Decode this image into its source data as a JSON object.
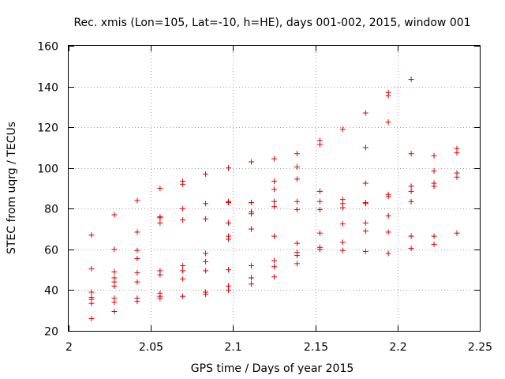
{
  "chart_data": {
    "type": "scatter",
    "title": "Rec. xmis (Lon=105, Lat=-10, h=HE), days 001-002, 2015, window 001",
    "xlabel": "GPS time / Days of year 2015",
    "ylabel": "STEC from uqrg / TECUs",
    "xlim": [
      2,
      2.25
    ],
    "ylim": [
      20,
      160
    ],
    "xticks": [
      2,
      2.05,
      2.1,
      2.15,
      2.2,
      2.25
    ],
    "xtick_labels": [
      "2",
      "2.05",
      "2.1",
      "2.15",
      "2.2",
      "2.25"
    ],
    "yticks": [
      20,
      40,
      60,
      80,
      100,
      120,
      140,
      160
    ],
    "ytick_labels": [
      "20",
      "40",
      "60",
      "80",
      "100",
      "120",
      "140",
      "160"
    ],
    "grid": true,
    "marker": "plus",
    "color": "#e00000",
    "points": [
      [
        2.0139,
        67
      ],
      [
        2.0139,
        50.5
      ],
      [
        2.0139,
        39
      ],
      [
        2.0139,
        36.5
      ],
      [
        2.0139,
        35.5
      ],
      [
        2.0139,
        33.5
      ],
      [
        2.0139,
        26
      ],
      [
        2.0278,
        77
      ],
      [
        2.0278,
        60
      ],
      [
        2.0278,
        49
      ],
      [
        2.0278,
        46
      ],
      [
        2.0278,
        44
      ],
      [
        2.0278,
        42
      ],
      [
        2.0278,
        36
      ],
      [
        2.0278,
        34
      ],
      [
        2.0278,
        29.5
      ],
      [
        2.0417,
        84
      ],
      [
        2.0417,
        68.5
      ],
      [
        2.0417,
        59.5
      ],
      [
        2.0417,
        55.5
      ],
      [
        2.0417,
        48.5
      ],
      [
        2.0417,
        44
      ],
      [
        2.0417,
        36
      ],
      [
        2.0417,
        34.5
      ],
      [
        2.0556,
        90
      ],
      [
        2.0556,
        76
      ],
      [
        2.0556,
        75.5
      ],
      [
        2.0556,
        73
      ],
      [
        2.0556,
        49.5
      ],
      [
        2.0556,
        47.5
      ],
      [
        2.0556,
        38.5
      ],
      [
        2.0556,
        37
      ],
      [
        2.0556,
        36
      ],
      [
        2.0694,
        93.5
      ],
      [
        2.0694,
        92
      ],
      [
        2.0694,
        80
      ],
      [
        2.0694,
        74.5
      ],
      [
        2.0694,
        52
      ],
      [
        2.0694,
        49.5
      ],
      [
        2.0694,
        45.5
      ],
      [
        2.0694,
        37
      ],
      [
        2.0833,
        97
      ],
      [
        2.0833,
        82.5
      ],
      [
        2.0833,
        75
      ],
      [
        2.0833,
        58
      ],
      [
        2.0833,
        54
      ],
      [
        2.0833,
        49.5
      ],
      [
        2.0833,
        39
      ],
      [
        2.0833,
        38
      ],
      [
        2.0972,
        100
      ],
      [
        2.0972,
        83.5
      ],
      [
        2.0972,
        83
      ],
      [
        2.0972,
        73
      ],
      [
        2.0972,
        66.5
      ],
      [
        2.0972,
        65
      ],
      [
        2.0972,
        50
      ],
      [
        2.0972,
        42
      ],
      [
        2.0972,
        40
      ],
      [
        2.1111,
        103
      ],
      [
        2.1111,
        83
      ],
      [
        2.1111,
        78.5
      ],
      [
        2.1111,
        77.5
      ],
      [
        2.1111,
        70
      ],
      [
        2.1111,
        52
      ],
      [
        2.1111,
        46
      ],
      [
        2.1111,
        43
      ],
      [
        2.125,
        104.5
      ],
      [
        2.125,
        93.5
      ],
      [
        2.125,
        89.5
      ],
      [
        2.125,
        83.5
      ],
      [
        2.125,
        81
      ],
      [
        2.125,
        66.5
      ],
      [
        2.125,
        54.5
      ],
      [
        2.125,
        51.5
      ],
      [
        2.125,
        46.5
      ],
      [
        2.1389,
        107
      ],
      [
        2.1389,
        100.5
      ],
      [
        2.1389,
        94.5
      ],
      [
        2.1389,
        83.5
      ],
      [
        2.1389,
        79.5
      ],
      [
        2.1389,
        63
      ],
      [
        2.1389,
        58.5
      ],
      [
        2.1389,
        57
      ],
      [
        2.1389,
        53
      ],
      [
        2.1528,
        113.5
      ],
      [
        2.1528,
        111.5
      ],
      [
        2.1528,
        88.5
      ],
      [
        2.1528,
        83.5
      ],
      [
        2.1528,
        79.5
      ],
      [
        2.1528,
        68
      ],
      [
        2.1528,
        61
      ],
      [
        2.1528,
        60
      ],
      [
        2.1667,
        119
      ],
      [
        2.1667,
        84.5
      ],
      [
        2.1667,
        82.5
      ],
      [
        2.1667,
        80.5
      ],
      [
        2.1667,
        72.5
      ],
      [
        2.1667,
        63.5
      ],
      [
        2.1667,
        59.5
      ],
      [
        2.1806,
        127
      ],
      [
        2.1806,
        110
      ],
      [
        2.1806,
        92.5
      ],
      [
        2.1806,
        83
      ],
      [
        2.1806,
        82.5
      ],
      [
        2.1806,
        73
      ],
      [
        2.1806,
        69
      ],
      [
        2.1806,
        59
      ],
      [
        2.1944,
        137
      ],
      [
        2.1944,
        135.5
      ],
      [
        2.1944,
        122.5
      ],
      [
        2.1944,
        87
      ],
      [
        2.1944,
        86
      ],
      [
        2.1944,
        76.5
      ],
      [
        2.1944,
        68.5
      ],
      [
        2.1944,
        58
      ],
      [
        2.2083,
        143.5
      ],
      [
        2.2083,
        107
      ],
      [
        2.2083,
        91
      ],
      [
        2.2083,
        88.5
      ],
      [
        2.2083,
        83.5
      ],
      [
        2.2083,
        66.5
      ],
      [
        2.2083,
        60.5
      ],
      [
        2.2222,
        106
      ],
      [
        2.2222,
        98.5
      ],
      [
        2.2222,
        92.5
      ],
      [
        2.2222,
        91
      ],
      [
        2.2222,
        66.5
      ],
      [
        2.2222,
        62.5
      ],
      [
        2.2361,
        109.5
      ],
      [
        2.2361,
        107.5
      ],
      [
        2.2361,
        97.5
      ],
      [
        2.2361,
        95.5
      ],
      [
        2.2361,
        68
      ]
    ]
  }
}
